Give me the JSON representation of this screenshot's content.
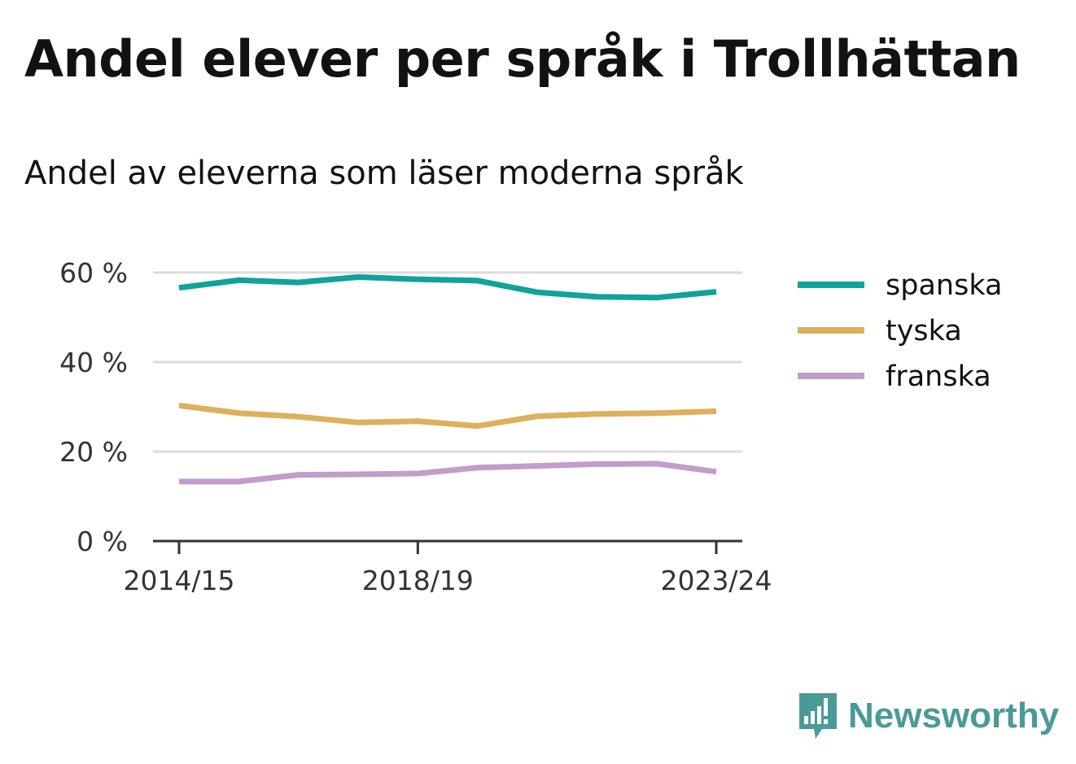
{
  "title": "Andel elever per språk i Trollhättan",
  "subtitle": "Andel av eleverna som läser moderna språk",
  "brand": "Newsworthy",
  "brand_color": "#4a9a97",
  "chart_data": {
    "type": "line",
    "x": [
      "2014/15",
      "2015/16",
      "2016/17",
      "2017/18",
      "2018/19",
      "2019/20",
      "2020/21",
      "2021/22",
      "2022/23",
      "2023/24"
    ],
    "x_tick_labels": [
      "2014/15",
      "2018/19",
      "2023/24"
    ],
    "y_ticks": [
      0,
      20,
      40,
      60
    ],
    "y_tick_labels": [
      "0 %",
      "20 %",
      "40 %",
      "60 %"
    ],
    "ylim": [
      0,
      60
    ],
    "grid": true,
    "legend_position": "right",
    "series": [
      {
        "name": "spanska",
        "color": "#0fa39a",
        "values": [
          56.6,
          58.3,
          57.8,
          59.0,
          58.5,
          58.2,
          55.6,
          54.6,
          54.4,
          55.7
        ]
      },
      {
        "name": "tyska",
        "color": "#ddb05d",
        "values": [
          30.3,
          28.6,
          27.8,
          26.5,
          26.8,
          25.7,
          27.9,
          28.4,
          28.6,
          29.0
        ]
      },
      {
        "name": "franska",
        "color": "#c29dcc",
        "values": [
          13.3,
          13.3,
          14.8,
          14.9,
          15.1,
          16.4,
          16.8,
          17.2,
          17.3,
          15.5
        ]
      }
    ]
  }
}
